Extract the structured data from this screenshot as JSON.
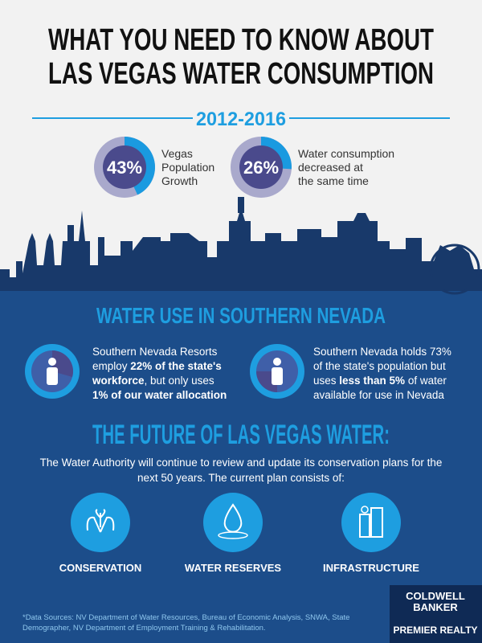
{
  "header": {
    "title_lines": [
      "WHAT YOU NEED TO KNOW ABOUT",
      "LAS VEGAS WATER CONSUMPTION"
    ],
    "period": "2012-2016"
  },
  "stats": [
    {
      "value": 43,
      "label": "43%",
      "text_lines": [
        "Vegas",
        "Population",
        "Growth"
      ]
    },
    {
      "value": 26,
      "label": "26%",
      "text_lines": [
        "Water consumption",
        "decreased at",
        "the same time"
      ]
    }
  ],
  "water_use": {
    "title": "WATER USE IN SOUTHERN NEVADA",
    "items": [
      {
        "lines": [
          [
            {
              "text": "Southern Nevada Resorts"
            }
          ],
          [
            {
              "text": "employ "
            },
            {
              "text": "22% of the state's",
              "bold": true
            }
          ],
          [
            {
              "text": "workforce",
              "bold": true
            },
            {
              "text": ", but only uses"
            }
          ],
          [
            {
              "text": "1% of our water allocation",
              "bold": true
            }
          ]
        ]
      },
      {
        "lines": [
          [
            {
              "text": "Southern Nevada holds 73%"
            }
          ],
          [
            {
              "text": "of the state's population but"
            }
          ],
          [
            {
              "text": "uses "
            },
            {
              "text": "less than 5%",
              "bold": true
            },
            {
              "text": " of water"
            }
          ],
          [
            {
              "text": "available for use in Nevada"
            }
          ]
        ]
      }
    ]
  },
  "future": {
    "title": "THE FUTURE OF LAS VEGAS WATER:",
    "intro_lines": [
      "The Water Authority will continue to review and update its conservation plans for the",
      "next 50 years. The current plan consists of:"
    ],
    "pillars": [
      "CONSERVATION",
      "WATER RESERVES",
      "INFRASTRUCTURE"
    ]
  },
  "footer": {
    "source_lines": [
      "*Data Sources: NV Department of Water Resources, Bureau of Economic Analysis, SNWA, State",
      "Demographer, NV Department of Employment Training & Rehabilitation."
    ]
  },
  "logo": {
    "lines": [
      "COLDWELL",
      "BANKER",
      "PREMIER REALTY"
    ]
  }
}
